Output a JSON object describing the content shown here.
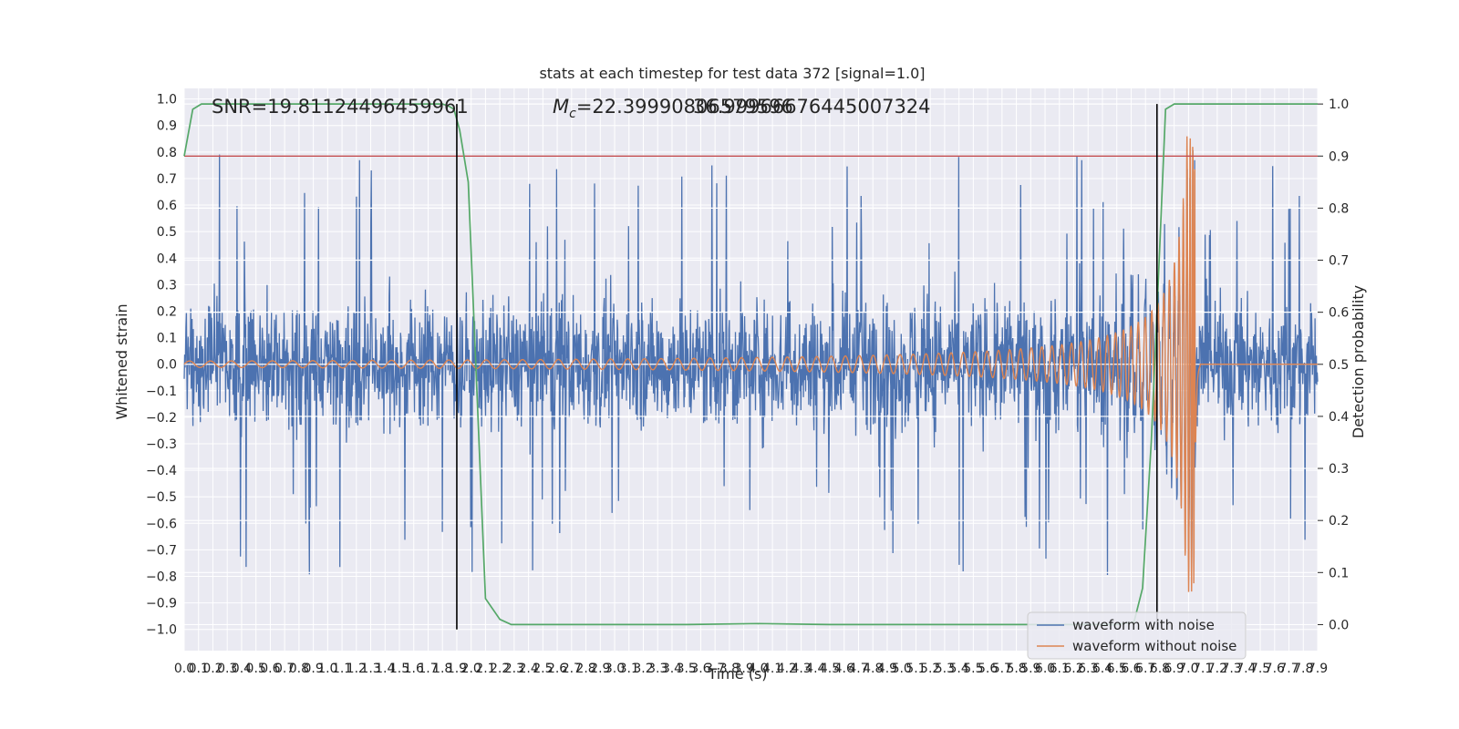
{
  "chart_data": {
    "type": "line",
    "title": "stats at each timestep for test data 372 [signal=1.0]",
    "xlabel": "Time (s)",
    "ylabel": "Whitened strain",
    "y2label": "Detection probability",
    "xlim": [
      0.0,
      7.9
    ],
    "ylim": [
      -1.08,
      1.04
    ],
    "y2lim": [
      -0.05,
      1.03
    ],
    "x_ticks": [
      "0.0",
      "0.1",
      "0.2",
      "0.3",
      "0.4",
      "0.5",
      "0.6",
      "0.7",
      "0.8",
      "0.9",
      "1.0",
      "1.1",
      "1.2",
      "1.3",
      "1.4",
      "1.5",
      "1.6",
      "1.7",
      "1.8",
      "1.9",
      "2.0",
      "2.1",
      "2.2",
      "2.3",
      "2.4",
      "2.5",
      "2.6",
      "2.7",
      "2.8",
      "2.9",
      "3.0",
      "3.1",
      "3.2",
      "3.3",
      "3.4",
      "3.5",
      "3.6",
      "3.7",
      "3.8",
      "3.9",
      "4.0",
      "4.1",
      "4.2",
      "4.3",
      "4.4",
      "4.5",
      "4.6",
      "4.7",
      "4.8",
      "4.9",
      "5.0",
      "5.1",
      "5.2",
      "5.3",
      "5.4",
      "5.5",
      "5.6",
      "5.7",
      "5.8",
      "5.9",
      "6.0",
      "6.1",
      "6.2",
      "6.3",
      "6.4",
      "6.5",
      "6.6",
      "6.7",
      "6.8",
      "6.9",
      "7.0",
      "7.1",
      "7.2",
      "7.3",
      "7.4",
      "7.5",
      "7.6",
      "7.7",
      "7.8",
      "7.9"
    ],
    "y_ticks": [
      "1.0",
      "0.9",
      "0.8",
      "0.7",
      "0.6",
      "0.5",
      "0.4",
      "0.3",
      "0.2",
      "0.1",
      "0.0",
      "−0.1",
      "−0.2",
      "−0.3",
      "−0.4",
      "−0.5",
      "−0.6",
      "−0.7",
      "−0.8",
      "−0.9",
      "−1.0"
    ],
    "y2_ticks": [
      "1.0",
      "0.9",
      "0.8",
      "0.7",
      "0.6",
      "0.5",
      "0.4",
      "0.3",
      "0.2",
      "0.1",
      "0.0"
    ],
    "annotations": {
      "snr": "SNR=19.81124496459961",
      "mc_prefix": "M",
      "mc_sub": "c",
      "mc_value": "=22.39990806579596",
      "overlap_value": "36.99966676445007324"
    },
    "threshold_y2": 0.9,
    "vertical_lines_x": [
      1.9,
      6.78
    ],
    "series": [
      {
        "name": "waveform with noise",
        "color": "#4c72b0",
        "kind": "noise",
        "envelope": 0.3,
        "peak": 0.86
      },
      {
        "name": "waveform without noise",
        "color": "#dd8452",
        "kind": "chirp",
        "t_merger": 7.05,
        "amp_start": 0.012,
        "amp_peak": 0.86
      },
      {
        "name": "",
        "color": "#55a868",
        "kind": "probability",
        "axis": "right",
        "x": [
          0.0,
          0.06,
          0.12,
          0.2,
          0.5,
          1.0,
          1.5,
          1.8,
          1.85,
          1.88,
          1.92,
          1.98,
          2.1,
          2.2,
          2.28,
          2.4,
          3.0,
          3.5,
          4.0,
          4.5,
          5.0,
          5.5,
          6.0,
          6.3,
          6.5,
          6.62,
          6.68,
          6.74,
          6.78,
          6.84,
          6.9,
          7.0,
          7.5,
          7.9
        ],
        "y": [
          0.9,
          0.99,
          1.0,
          1.0,
          1.0,
          1.0,
          1.0,
          1.0,
          0.995,
          0.99,
          0.95,
          0.85,
          0.05,
          0.01,
          0.0,
          0.0,
          0.0,
          0.0,
          0.002,
          0.0,
          0.0,
          0.0,
          0.0,
          0.0,
          0.0,
          0.005,
          0.07,
          0.35,
          0.6,
          0.99,
          1.0,
          1.0,
          1.0,
          1.0
        ]
      }
    ],
    "threshold_color": "#c44e52",
    "vline_color": "#000000",
    "grid": true,
    "legend_position": "lower-right",
    "background": "#eaeaf2"
  }
}
